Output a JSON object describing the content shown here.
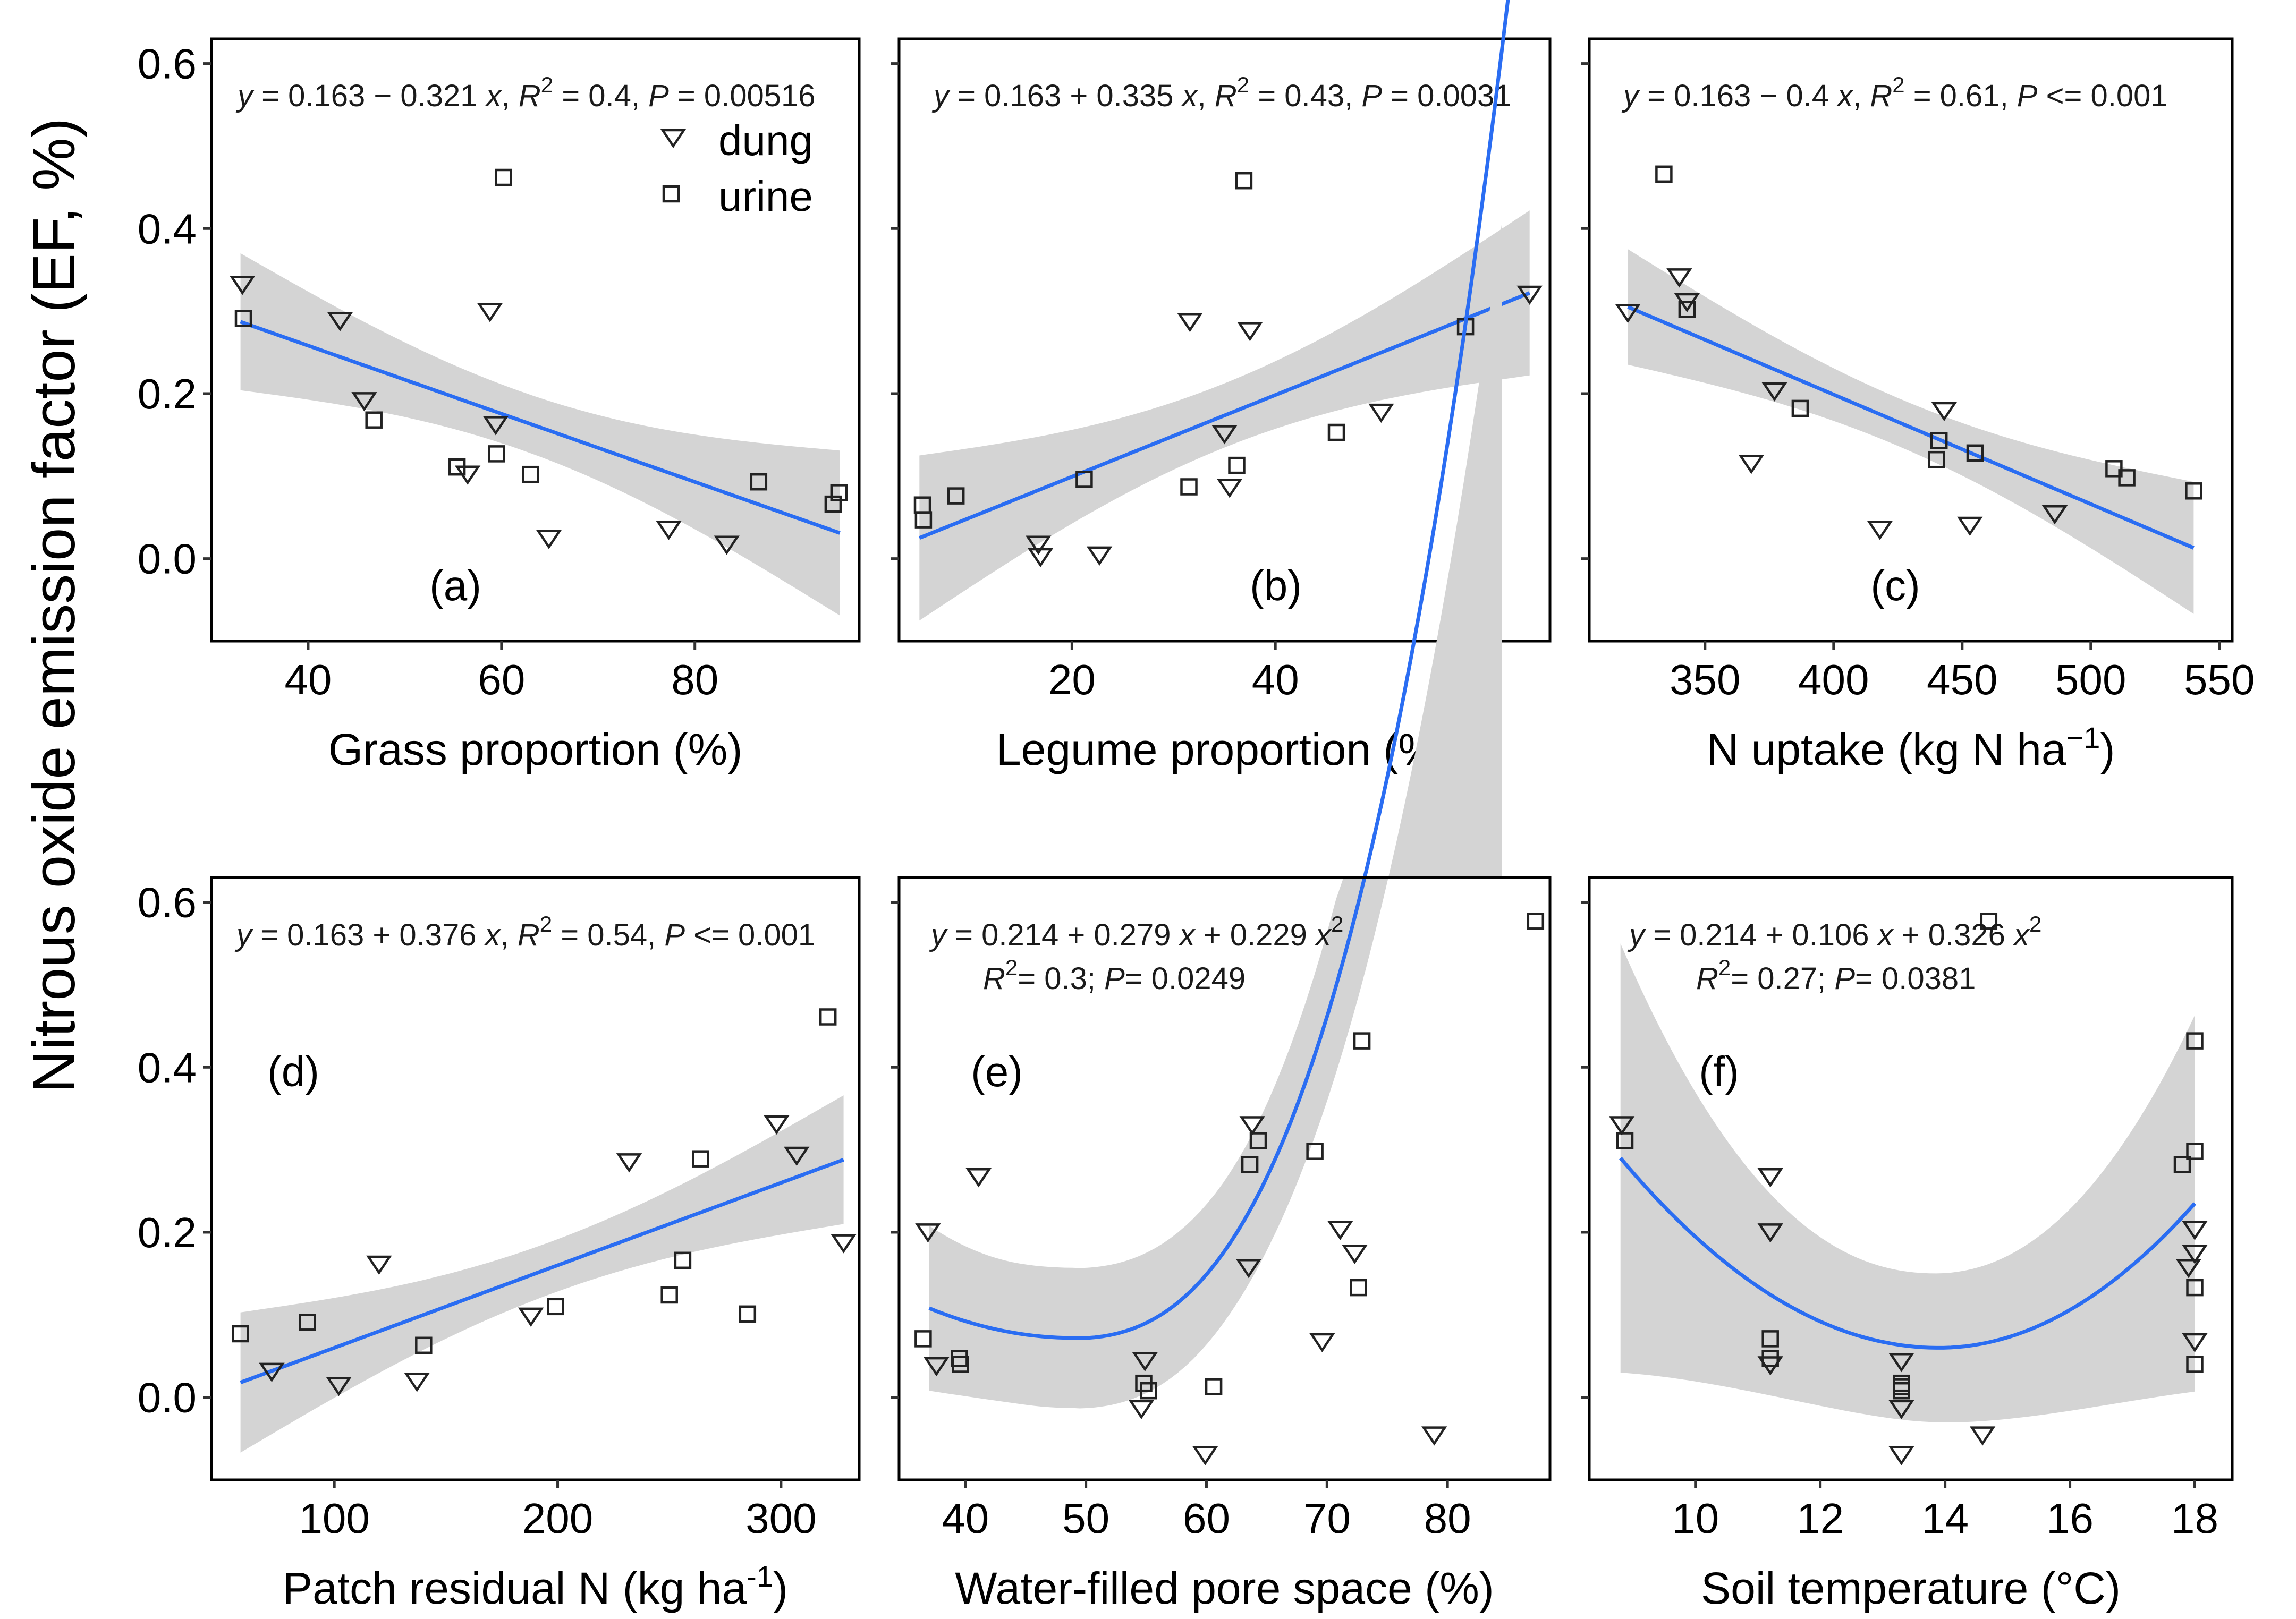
{
  "figure": {
    "ylabel": "Nitrous oxide emission factor (EF, %)",
    "yticks": [
      "0.0",
      "0.2",
      "0.4",
      "0.6"
    ],
    "legend": {
      "dung": "dung",
      "urine": "urine"
    }
  },
  "chart_data": [
    {
      "type": "scatter",
      "panel": "(a)",
      "xlabel": "Grass proportion (%)",
      "xlim": [
        30,
        97
      ],
      "ylim": [
        -0.1,
        0.63
      ],
      "xticks": [
        40,
        60,
        80
      ],
      "xtick_labels": [
        "40",
        "60",
        "80"
      ],
      "fit": {
        "kind": "linear",
        "x_range": [
          33,
          95
        ],
        "y": [
          0.287,
          0.031
        ],
        "ci_width": [
          0.083,
          0.1
        ],
        "ci_mid": 0.03
      },
      "equation": {
        "y": "y",
        "rhs": " = 0.163 − 0.321 ",
        "x": "x",
        "r2": "R",
        "r2val": " = 0.4, ",
        "p": "P",
        "pval": " = 0.00516"
      },
      "stats": null,
      "series": [
        {
          "name": "dung",
          "marker": "triangle-down",
          "points": [
            [
              33.2,
              0.333
            ],
            [
              43.3,
              0.289
            ],
            [
              45.8,
              0.192
            ],
            [
              56.5,
              0.103
            ],
            [
              58.8,
              0.3
            ],
            [
              59.4,
              0.163
            ],
            [
              64.9,
              0.025
            ],
            [
              77.3,
              0.036
            ],
            [
              83.3,
              0.018
            ]
          ]
        },
        {
          "name": "urine",
          "marker": "square",
          "points": [
            [
              33.3,
              0.291
            ],
            [
              46.8,
              0.168
            ],
            [
              55.4,
              0.111
            ],
            [
              59.5,
              0.127
            ],
            [
              60.2,
              0.462
            ],
            [
              63.0,
              0.102
            ],
            [
              86.6,
              0.093
            ],
            [
              94.3,
              0.066
            ],
            [
              94.9,
              0.08
            ]
          ]
        }
      ]
    },
    {
      "type": "scatter",
      "panel": "(b)",
      "xlabel": "Legume proportion (%)",
      "xlim": [
        3,
        67
      ],
      "ylim": [
        -0.1,
        0.63
      ],
      "xticks": [
        20,
        40,
        60
      ],
      "xtick_labels": [
        "20",
        "40",
        "60"
      ],
      "fit": {
        "kind": "linear",
        "x_range": [
          5,
          65
        ],
        "y": [
          0.025,
          0.322
        ],
        "ci_width": [
          0.1,
          0.1
        ],
        "ci_mid": 0.03
      },
      "equation": {
        "y": "y",
        "rhs": " = 0.163 + 0.335 ",
        "x": "x",
        "r2": "R",
        "r2val": " = 0.43, ",
        "p": "P",
        "pval": " = 0.0031"
      },
      "stats": null,
      "series": [
        {
          "name": "dung",
          "marker": "triangle-down",
          "points": [
            [
              16.7,
              0.018
            ],
            [
              16.9,
              0.003
            ],
            [
              22.7,
              0.005
            ],
            [
              31.6,
              0.288
            ],
            [
              35.0,
              0.152
            ],
            [
              35.5,
              0.087
            ],
            [
              37.5,
              0.277
            ],
            [
              50.4,
              0.178
            ],
            [
              65.0,
              0.321
            ]
          ]
        },
        {
          "name": "urine",
          "marker": "square",
          "points": [
            [
              5.3,
              0.065
            ],
            [
              5.4,
              0.047
            ],
            [
              8.6,
              0.076
            ],
            [
              21.2,
              0.096
            ],
            [
              31.5,
              0.087
            ],
            [
              36.2,
              0.113
            ],
            [
              36.9,
              0.458
            ],
            [
              46.0,
              0.153
            ],
            [
              58.7,
              0.281
            ]
          ]
        }
      ]
    },
    {
      "type": "scatter",
      "panel": "(c)",
      "xlabel": "N uptake (kg N ha",
      "xlabel_sup": "−1",
      "xlabel_end": ")",
      "xlim": [
        305,
        555
      ],
      "ylim": [
        -0.1,
        0.63
      ],
      "xticks": [
        350,
        400,
        450,
        500,
        550
      ],
      "xtick_labels": [
        "350",
        "400",
        "450",
        "500",
        "550"
      ],
      "fit": {
        "kind": "linear",
        "x_range": [
          320,
          540
        ],
        "y": [
          0.305,
          0.013
        ],
        "ci_width": [
          0.07,
          0.08
        ],
        "ci_mid": 0.3
      },
      "equation": {
        "y": "y",
        "rhs": " = 0.163 − 0.4 ",
        "x": "x",
        "r2": "R",
        "r2val": " = 0.61, ",
        "p": "P",
        "pval": " <= 0.001"
      },
      "stats": null,
      "series": [
        {
          "name": "dung",
          "marker": "triangle-down",
          "points": [
            [
              320,
              0.299
            ],
            [
              340,
              0.342
            ],
            [
              343,
              0.312
            ],
            [
              377,
              0.204
            ],
            [
              368,
              0.116
            ],
            [
              418,
              0.036
            ],
            [
              443,
              0.18
            ],
            [
              453,
              0.041
            ],
            [
              486,
              0.055
            ]
          ]
        },
        {
          "name": "urine",
          "marker": "square",
          "points": [
            [
              334,
              0.466
            ],
            [
              343,
              0.302
            ],
            [
              387,
              0.182
            ],
            [
              440,
              0.12
            ],
            [
              441,
              0.143
            ],
            [
              455,
              0.128
            ],
            [
              509,
              0.109
            ],
            [
              514,
              0.098
            ],
            [
              540,
              0.082
            ]
          ]
        }
      ]
    },
    {
      "type": "scatter",
      "panel": "(d)",
      "xlabel": "Patch residual N (kg ha",
      "xlabel_sup": "-1",
      "xlabel_end": ")",
      "xlim": [
        45,
        335
      ],
      "ylim": [
        -0.1,
        0.63
      ],
      "xticks": [
        100,
        200,
        300
      ],
      "xtick_labels": [
        "100",
        "200",
        "300"
      ],
      "fit": {
        "kind": "linear",
        "x_range": [
          58,
          328
        ],
        "y": [
          0.018,
          0.288
        ],
        "ci_width": [
          0.085,
          0.078
        ],
        "ci_mid": 0.3
      },
      "equation": {
        "y": "y",
        "rhs": " = 0.163 + 0.376 ",
        "x": "x",
        "r2": "R",
        "r2val": " = 0.54, ",
        "p": "P",
        "pval": " <= 0.001"
      },
      "stats": null,
      "series": [
        {
          "name": "dung",
          "marker": "triangle-down",
          "points": [
            [
              72,
              0.032
            ],
            [
              102,
              0.015
            ],
            [
              120,
              0.162
            ],
            [
              137,
              0.02
            ],
            [
              188,
              0.099
            ],
            [
              232,
              0.286
            ],
            [
              298,
              0.332
            ],
            [
              307,
              0.294
            ],
            [
              328,
              0.188
            ]
          ]
        },
        {
          "name": "urine",
          "marker": "square",
          "points": [
            [
              58,
              0.077
            ],
            [
              88,
              0.091
            ],
            [
              140,
              0.063
            ],
            [
              199,
              0.11
            ],
            [
              250,
              0.124
            ],
            [
              256,
              0.166
            ],
            [
              264,
              0.289
            ],
            [
              285,
              0.101
            ],
            [
              321,
              0.461
            ]
          ]
        }
      ]
    },
    {
      "type": "scatter",
      "panel": "(e)",
      "xlabel": "Water-filled pore space (%)",
      "xlim": [
        34.5,
        88.5
      ],
      "ylim": [
        -0.1,
        0.63
      ],
      "xticks": [
        40,
        50,
        60,
        70,
        80
      ],
      "xtick_labels": [
        "40",
        "50",
        "60",
        "70",
        "80"
      ],
      "fit": {
        "kind": "quadratic",
        "x_range": [
          37,
          87
        ],
        "coef": [
          0.07147,
          0.2067,
          0.2276
        ],
        "scale": 16.7,
        "center": 49.0,
        "ci_w0": 0.085,
        "ci_k": 0.13,
        "ci_cap": 84.5
      },
      "equation": {
        "y": "y",
        "rhs": " = 0.214 + 0.279 ",
        "x": "x",
        "rhs2": " + 0.229 ",
        "x2": "x",
        "sup": "2"
      },
      "stats": {
        "r2": "R",
        "r2sup": "2",
        "r2val": "= 0.3; ",
        "p": "P",
        "pval": "= 0.0249"
      },
      "series": [
        {
          "name": "dung",
          "marker": "triangle-down",
          "points": [
            [
              36.9,
              0.201
            ],
            [
              37.6,
              0.039
            ],
            [
              41.1,
              0.268
            ],
            [
              54.6,
              -0.013
            ],
            [
              54.9,
              0.045
            ],
            [
              59.9,
              -0.069
            ],
            [
              63.5,
              0.158
            ],
            [
              63.8,
              0.331
            ],
            [
              69.6,
              0.068
            ],
            [
              71.1,
              0.204
            ],
            [
              72.3,
              0.175
            ],
            [
              78.9,
              -0.045
            ]
          ]
        },
        {
          "name": "urine",
          "marker": "square",
          "points": [
            [
              36.5,
              0.071
            ],
            [
              39.5,
              0.047
            ],
            [
              39.6,
              0.04
            ],
            [
              54.8,
              0.017
            ],
            [
              55.2,
              0.008
            ],
            [
              60.6,
              0.013
            ],
            [
              63.6,
              0.282
            ],
            [
              64.3,
              0.311
            ],
            [
              69.0,
              0.298
            ],
            [
              72.6,
              0.133
            ],
            [
              72.9,
              0.432
            ],
            [
              87.3,
              0.577
            ]
          ]
        }
      ]
    },
    {
      "type": "scatter",
      "panel": "(f)",
      "xlabel": "Soil temperature (°C)",
      "xlim": [
        8.3,
        18.6
      ],
      "ylim": [
        -0.1,
        0.63
      ],
      "xticks": [
        10,
        12,
        14,
        16,
        18
      ],
      "xtick_labels": [
        "10",
        "12",
        "14",
        "16",
        "18"
      ],
      "fit": {
        "kind": "quadratic_f",
        "x_range": [
          8.8,
          18
        ]
      },
      "equation": {
        "y": "y",
        "rhs": " = 0.214 + 0.106 ",
        "x": "x",
        "rhs2": " + 0.326 ",
        "x2": "x",
        "sup": "2"
      },
      "stats": {
        "r2": "R",
        "r2sup": "2",
        "r2val": "= 0.27; ",
        "p": "P",
        "pval": "= 0.0381"
      },
      "series": [
        {
          "name": "dung",
          "marker": "triangle-down",
          "points": [
            [
              8.82,
              0.331
            ],
            [
              11.2,
              0.268
            ],
            [
              11.2,
              0.201
            ],
            [
              11.2,
              0.04
            ],
            [
              13.3,
              0.044
            ],
            [
              13.3,
              -0.013
            ],
            [
              13.3,
              -0.069
            ],
            [
              14.6,
              -0.045
            ],
            [
              17.9,
              0.158
            ],
            [
              18.0,
              0.204
            ],
            [
              18.0,
              0.175
            ],
            [
              18.0,
              0.068
            ]
          ]
        },
        {
          "name": "urine",
          "marker": "square",
          "points": [
            [
              8.87,
              0.311
            ],
            [
              11.2,
              0.071
            ],
            [
              11.2,
              0.047
            ],
            [
              13.3,
              0.008
            ],
            [
              13.3,
              0.017
            ],
            [
              13.3,
              0.013
            ],
            [
              14.7,
              0.577
            ],
            [
              17.8,
              0.282
            ],
            [
              18.0,
              0.298
            ],
            [
              18.0,
              0.432
            ],
            [
              18.0,
              0.133
            ],
            [
              18.0,
              0.04
            ]
          ]
        }
      ]
    }
  ]
}
